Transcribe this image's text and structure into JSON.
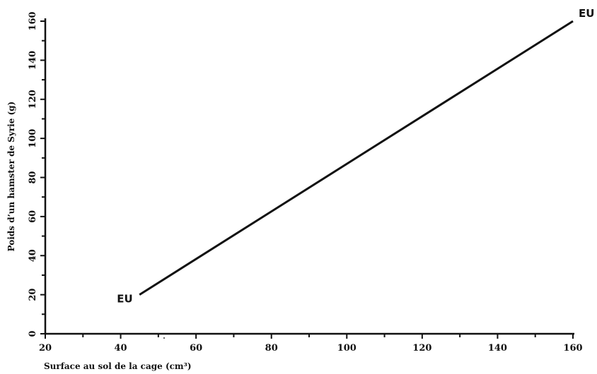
{
  "chart_data": {
    "type": "line",
    "title": "",
    "xlabel": "Surface au sol de la cage (cm³)",
    "ylabel": "Poids d’un hamster de Syrie (g)",
    "xlim": [
      20,
      160
    ],
    "ylim": [
      0,
      160
    ],
    "x_ticks": [
      20,
      40,
      60,
      80,
      100,
      120,
      140,
      160
    ],
    "y_ticks": [
      0,
      20,
      40,
      60,
      80,
      100,
      120,
      140,
      160
    ],
    "x_tick_labels": [
      "20",
      "40",
      "60",
      "80",
      "100",
      "120",
      "140",
      "160"
    ],
    "y_tick_labels": [
      "0",
      "20",
      "40",
      "60",
      "80",
      "100",
      "120",
      "140",
      "160"
    ],
    "grid": false,
    "legend": "none",
    "series": [
      {
        "x": [
          45,
          160
        ],
        "y": [
          20,
          160
        ]
      }
    ],
    "annotations": [
      {
        "text": "EU",
        "x": 45,
        "y": 20
      },
      {
        "text": "EU",
        "x": 160,
        "y": 160
      }
    ]
  }
}
